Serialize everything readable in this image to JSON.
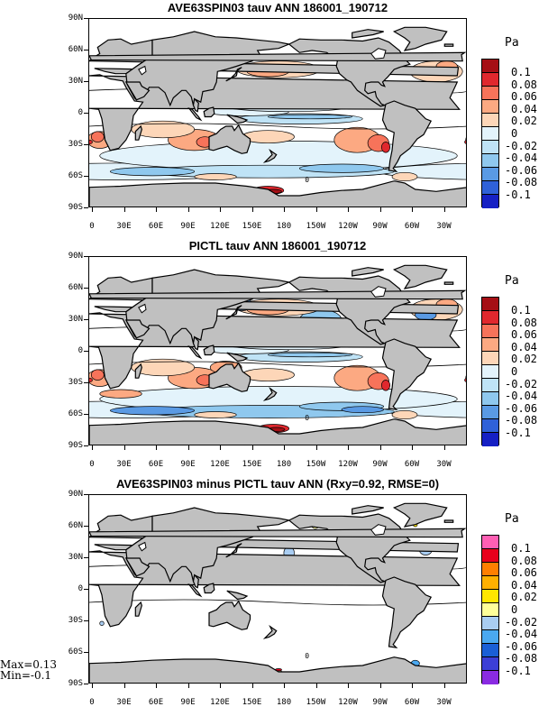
{
  "panels": [
    {
      "title": "AVE63SPIN03 tauv ANN 186001_190712",
      "scheme": "diverging",
      "contour_zero_label": "0"
    },
    {
      "title": "PICTL tauv ANN 186001_190712",
      "scheme": "diverging",
      "contour_zero_label": "0"
    },
    {
      "title": "AVE63SPIN03 minus PICTL tauv ANN (Rxy=0.92, RMSE=0)",
      "scheme": "difference",
      "contour_zero_label": "0"
    }
  ],
  "lat_labels": [
    "90N",
    "60N",
    "30N",
    "0",
    "30S",
    "60S",
    "90S"
  ],
  "lon_labels": [
    "0",
    "30E",
    "60E",
    "90E",
    "120E",
    "150E",
    "180",
    "150W",
    "120W",
    "90W",
    "60W",
    "30W"
  ],
  "colorbar": {
    "unit": "Pa",
    "labels": [
      "0.1",
      "0.08",
      "0.06",
      "0.04",
      "0.02",
      "0",
      "-0.02",
      "-0.04",
      "-0.06",
      "-0.08",
      "-0.1"
    ],
    "diverging_colors": [
      "#a50f15",
      "#e0282e",
      "#f7735a",
      "#fca982",
      "#fdd6b8",
      "#fff4e8",
      "#e3f3fb",
      "#bfe3f6",
      "#8fc8ee",
      "#5a9ae4",
      "#2f61d8",
      "#1620c4"
    ],
    "difference_colors": [
      "#ff5fb4",
      "#e8001c",
      "#ff7f00",
      "#ffb000",
      "#ffe600",
      "#ffff99",
      "#ffffff",
      "#a9cdf2",
      "#4aa8f0",
      "#1a5fd6",
      "#3c3fd6",
      "#8a2be2"
    ]
  },
  "stats": {
    "max_text": "Max=0.13",
    "min_text": "Min=-0.1"
  },
  "colors": {
    "land": "#c0c0c0",
    "ocean_neutral": "#ffffff",
    "contour": "#000000"
  }
}
